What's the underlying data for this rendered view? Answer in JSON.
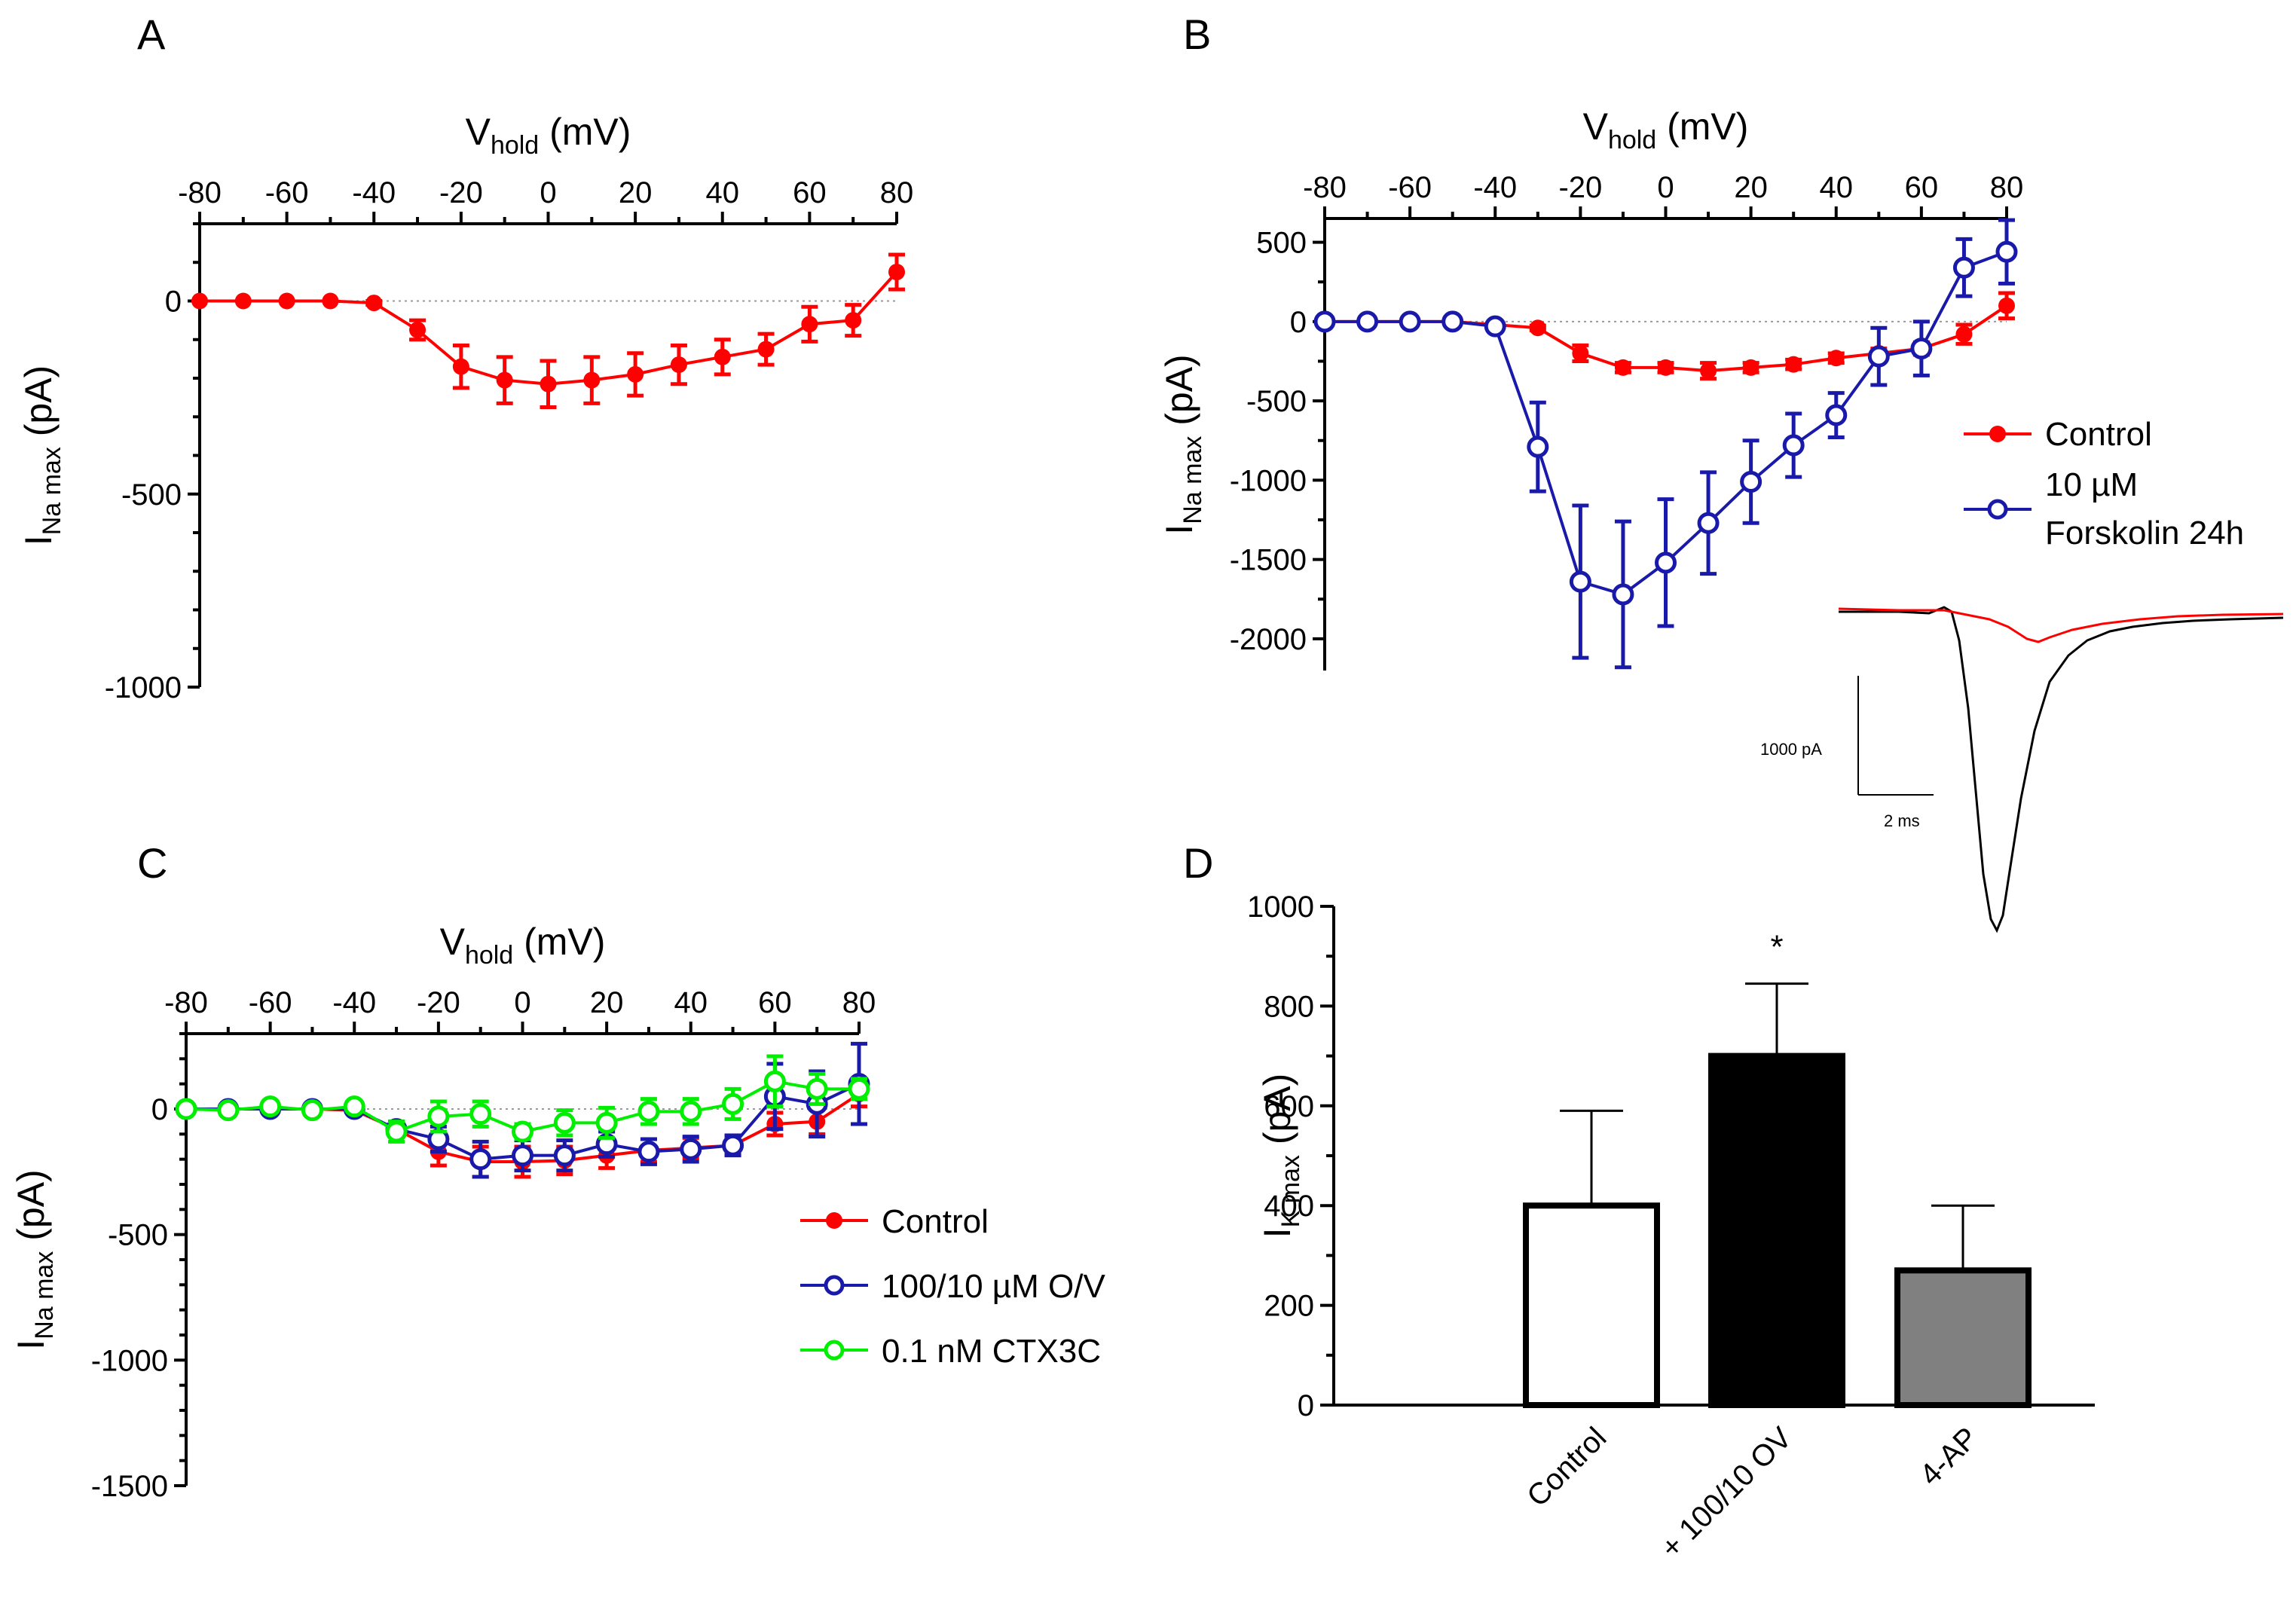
{
  "colors": {
    "control": "#ff0000",
    "forskolin": "#1a1aaa",
    "ov": "#1a1aaa",
    "ctx": "#00ee00",
    "bar_control": "#ffffff",
    "bar_ov": "#000000",
    "bar_4ap": "#808080"
  },
  "chart_data": [
    {
      "panel": "A",
      "type": "line",
      "xlabel_main": "V",
      "xlabel_sub": "hold",
      "xlabel_unit": " (mV)",
      "ylabel_main": "I",
      "ylabel_sub": "Na max",
      "ylabel_unit": " (pA)",
      "xlim": [
        -80,
        80
      ],
      "ylim": [
        -1000,
        200
      ],
      "xticks": [
        -80,
        -60,
        -40,
        -20,
        0,
        20,
        40,
        60,
        80
      ],
      "xtick_labels": [
        "-80",
        "-60",
        "-40",
        "-20",
        "0",
        "20",
        "40",
        "60",
        "80"
      ],
      "yticks": [
        0,
        -500,
        -1000
      ],
      "ytick_labels": [
        "0",
        "-500",
        "-1000"
      ],
      "x": [
        -80,
        -70,
        -60,
        -50,
        -40,
        -30,
        -20,
        -10,
        0,
        10,
        20,
        30,
        40,
        50,
        60,
        70,
        80
      ],
      "series": [
        {
          "name": "Control",
          "marker": "filled",
          "values": [
            0,
            0,
            0,
            0,
            -5,
            -75,
            -170,
            -205,
            -215,
            -205,
            -190,
            -165,
            -145,
            -125,
            -60,
            -50,
            75
          ],
          "errors": [
            0,
            0,
            0,
            0,
            5,
            25,
            55,
            60,
            60,
            60,
            55,
            50,
            45,
            40,
            45,
            40,
            45
          ]
        }
      ]
    },
    {
      "panel": "B",
      "type": "line",
      "xlabel_main": "V",
      "xlabel_sub": "hold",
      "xlabel_unit": " (mV)",
      "ylabel_main": "I",
      "ylabel_sub": "Na max",
      "ylabel_unit": " (pA)",
      "xlim": [
        -80,
        80
      ],
      "ylim": [
        -2200,
        650
      ],
      "xticks": [
        -80,
        -60,
        -40,
        -20,
        0,
        20,
        40,
        60,
        80
      ],
      "xtick_labels": [
        "-80",
        "-60",
        "-40",
        "-20",
        "0",
        "20",
        "40",
        "60",
        "80"
      ],
      "yticks": [
        500,
        0,
        -500,
        -1000,
        -1500,
        -2000
      ],
      "ytick_labels": [
        "500",
        "0",
        "-500",
        "-1000",
        "-1500",
        "-2000"
      ],
      "x": [
        -80,
        -70,
        -60,
        -50,
        -40,
        -30,
        -20,
        -10,
        0,
        10,
        20,
        30,
        40,
        50,
        60,
        70,
        80
      ],
      "series": [
        {
          "name": "Control",
          "marker": "filled",
          "values": [
            0,
            0,
            0,
            0,
            -20,
            -40,
            -200,
            -290,
            -290,
            -310,
            -290,
            -270,
            -230,
            -200,
            -170,
            -80,
            100
          ],
          "errors": [
            0,
            0,
            0,
            0,
            10,
            15,
            50,
            30,
            30,
            50,
            30,
            30,
            30,
            30,
            40,
            60,
            80
          ]
        },
        {
          "name": "10 µM Forskolin 24h",
          "marker": "open",
          "values": [
            0,
            0,
            0,
            0,
            -30,
            -790,
            -1640,
            -1720,
            -1520,
            -1270,
            -1010,
            -780,
            -590,
            -220,
            -170,
            340,
            440
          ],
          "errors": [
            0,
            0,
            0,
            0,
            10,
            280,
            480,
            460,
            400,
            320,
            260,
            200,
            140,
            180,
            170,
            180,
            200
          ]
        }
      ],
      "legend": [
        "Control",
        "10 µM",
        "Forskolin 24h"
      ],
      "inset": {
        "scale_current": "1000 pA",
        "scale_time": "2 ms"
      }
    },
    {
      "panel": "C",
      "type": "line",
      "xlabel_main": "V",
      "xlabel_sub": "hold",
      "xlabel_unit": " (mV)",
      "ylabel_main": "I",
      "ylabel_sub": "Na max",
      "ylabel_unit": " (pA)",
      "xlim": [
        -80,
        80
      ],
      "ylim": [
        -1500,
        300
      ],
      "xticks": [
        -80,
        -60,
        -40,
        -20,
        0,
        20,
        40,
        60,
        80
      ],
      "xtick_labels": [
        "-80",
        "-60",
        "-40",
        "-20",
        "0",
        "20",
        "40",
        "60",
        "80"
      ],
      "yticks": [
        0,
        -500,
        -1000,
        -1500
      ],
      "ytick_labels": [
        "0",
        "-500",
        "-1000",
        "-1500"
      ],
      "x": [
        -80,
        -70,
        -60,
        -50,
        -40,
        -30,
        -20,
        -10,
        0,
        10,
        20,
        30,
        40,
        50,
        60,
        70,
        80
      ],
      "series": [
        {
          "name": "Control",
          "marker": "filled",
          "values": [
            0,
            0,
            0,
            0,
            -5,
            -80,
            -170,
            -210,
            -210,
            -205,
            -185,
            -165,
            -155,
            -145,
            -60,
            -50,
            60
          ],
          "errors": [
            0,
            0,
            0,
            0,
            5,
            30,
            55,
            60,
            60,
            55,
            50,
            45,
            40,
            35,
            45,
            50,
            50
          ]
        },
        {
          "name": "100/10 µM O/V",
          "marker": "open",
          "values": [
            0,
            0,
            0,
            0,
            0,
            -80,
            -120,
            -200,
            -185,
            -185,
            -140,
            -170,
            -160,
            -145,
            50,
            20,
            100
          ],
          "errors": [
            0,
            0,
            0,
            0,
            5,
            30,
            50,
            70,
            60,
            60,
            50,
            50,
            50,
            40,
            130,
            130,
            160
          ]
        },
        {
          "name": "0.1 nM CTX3C",
          "marker": "open",
          "values": [
            0,
            -5,
            10,
            -5,
            10,
            -90,
            -30,
            -20,
            -90,
            -55,
            -55,
            -10,
            -10,
            20,
            110,
            80,
            80
          ],
          "errors": [
            5,
            5,
            10,
            10,
            10,
            40,
            60,
            50,
            30,
            50,
            60,
            50,
            50,
            60,
            100,
            60,
            40
          ]
        }
      ],
      "legend": [
        "Control",
        "100/10 µM O/V",
        "0.1 nM CTX3C"
      ]
    },
    {
      "panel": "D",
      "type": "bar",
      "ylabel_main": "I",
      "ylabel_sub": "K max",
      "ylabel_unit": " (pA)",
      "ylim": [
        0,
        1000
      ],
      "yticks": [
        0,
        200,
        400,
        600,
        800,
        1000
      ],
      "ytick_labels": [
        "0",
        "200",
        "400",
        "600",
        "800",
        "1000"
      ],
      "categories": [
        "Control",
        "+ 100/10 OV",
        "4-AP"
      ],
      "values": [
        400,
        700,
        270
      ],
      "errors": [
        190,
        145,
        130
      ],
      "annotations": [
        {
          "category": "+ 100/10 OV",
          "text": "*"
        }
      ]
    }
  ],
  "panel_letters": [
    "A",
    "B",
    "C",
    "D"
  ]
}
